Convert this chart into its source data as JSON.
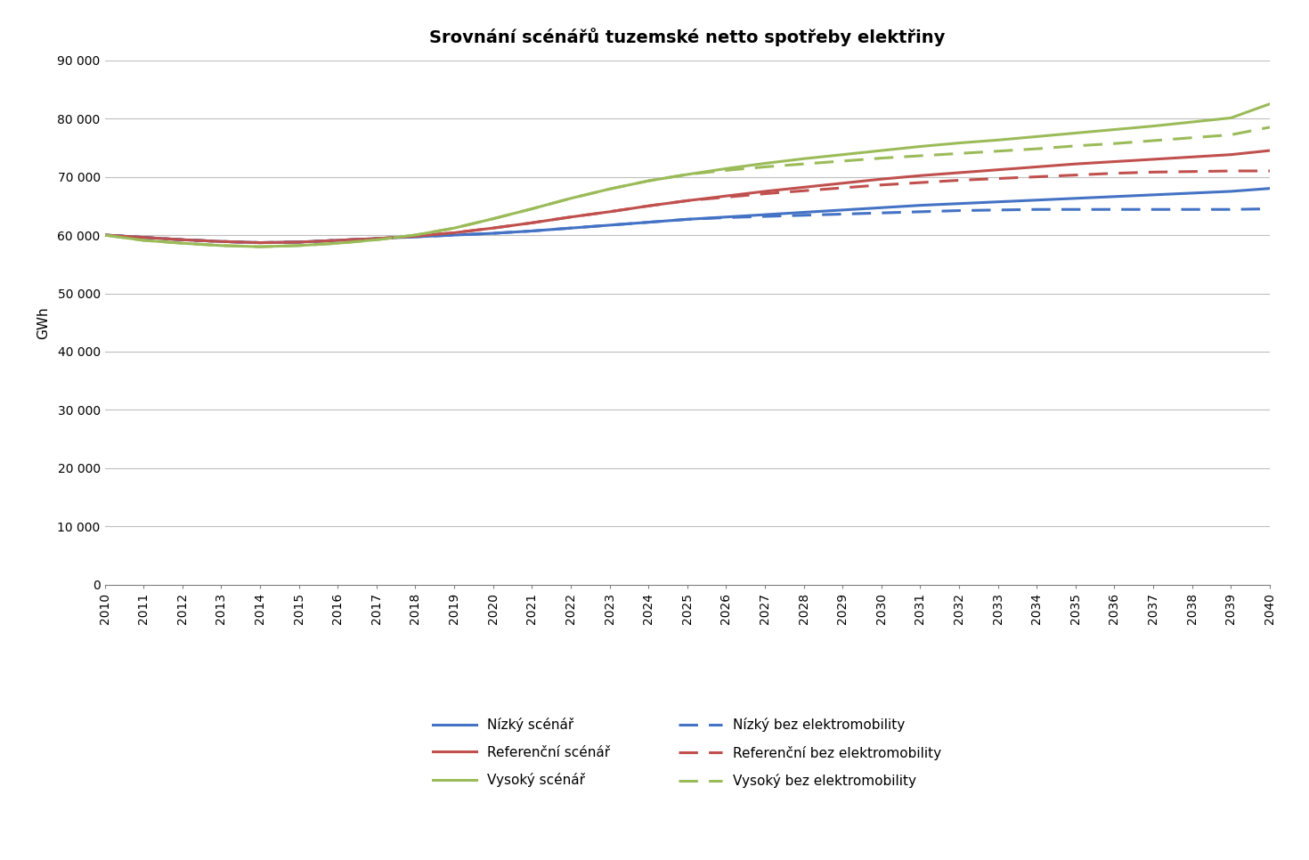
{
  "title": "Srovnání scénářů tuzemské netto spotřeby elektřiny",
  "ylabel": "GWh",
  "years": [
    2010,
    2011,
    2012,
    2013,
    2014,
    2015,
    2016,
    2017,
    2018,
    2019,
    2020,
    2021,
    2022,
    2023,
    2024,
    2025,
    2026,
    2027,
    2028,
    2029,
    2030,
    2031,
    2032,
    2033,
    2034,
    2035,
    2036,
    2037,
    2038,
    2039,
    2040
  ],
  "nizky": [
    60000,
    59600,
    59200,
    58900,
    58700,
    58800,
    59100,
    59400,
    59700,
    60000,
    60300,
    60700,
    61200,
    61700,
    62200,
    62700,
    63100,
    63500,
    63900,
    64300,
    64700,
    65100,
    65400,
    65700,
    66000,
    66300,
    66600,
    66900,
    67200,
    67500,
    68000
  ],
  "referencni": [
    60000,
    59600,
    59200,
    58900,
    58700,
    58800,
    59100,
    59400,
    59800,
    60400,
    61200,
    62100,
    63100,
    64000,
    65000,
    65900,
    66700,
    67500,
    68200,
    68900,
    69600,
    70200,
    70700,
    71200,
    71700,
    72200,
    72600,
    73000,
    73400,
    73800,
    74500
  ],
  "vysoky": [
    60000,
    59100,
    58600,
    58200,
    58000,
    58200,
    58600,
    59200,
    60000,
    61200,
    62800,
    64500,
    66300,
    67900,
    69300,
    70400,
    71400,
    72300,
    73100,
    73800,
    74500,
    75200,
    75800,
    76300,
    76900,
    77500,
    78100,
    78700,
    79400,
    80100,
    82500
  ],
  "nizky_bez": [
    60000,
    59600,
    59200,
    58900,
    58700,
    58800,
    59100,
    59400,
    59700,
    60000,
    60300,
    60700,
    61200,
    61700,
    62200,
    62700,
    63000,
    63200,
    63400,
    63600,
    63800,
    64000,
    64200,
    64300,
    64400,
    64400,
    64400,
    64400,
    64400,
    64400,
    64500
  ],
  "referencni_bez": [
    60000,
    59600,
    59200,
    58900,
    58700,
    58800,
    59100,
    59400,
    59800,
    60400,
    61200,
    62100,
    63100,
    64000,
    65000,
    65900,
    66500,
    67100,
    67600,
    68100,
    68600,
    69000,
    69400,
    69700,
    70000,
    70300,
    70600,
    70800,
    70900,
    71000,
    71000
  ],
  "vysoky_bez": [
    60000,
    59100,
    58600,
    58200,
    58000,
    58200,
    58600,
    59200,
    60000,
    61200,
    62800,
    64500,
    66300,
    67900,
    69300,
    70400,
    71100,
    71700,
    72200,
    72700,
    73200,
    73600,
    74000,
    74400,
    74800,
    75300,
    75700,
    76200,
    76700,
    77200,
    78500
  ],
  "color_nizky": "#4472C4",
  "color_referencni": "#C0504D",
  "color_vysoky": "#9BBB59",
  "ylim": [
    0,
    90000
  ],
  "yticks": [
    0,
    10000,
    20000,
    30000,
    40000,
    50000,
    60000,
    70000,
    80000,
    90000
  ],
  "background_color": "#FFFFFF",
  "grid_color": "#BFBFBF",
  "legend_labels": [
    "Nízký scénář",
    "Referenční scénář",
    "Vysoký scénář",
    "Nízký bez elektromobility",
    "Referenční bez elektromobility",
    "Vysoký bez elektromobility"
  ]
}
